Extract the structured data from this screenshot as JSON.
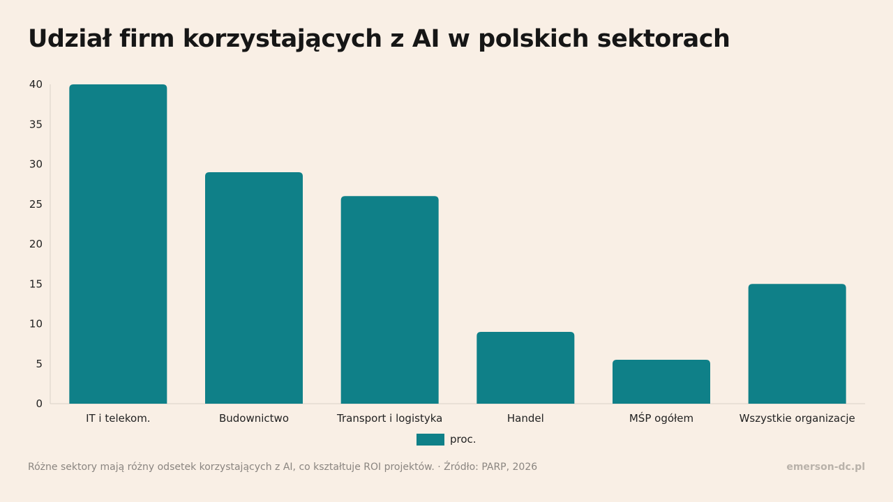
{
  "page": {
    "title": "Udział firm korzystających z AI w polskich sektorach",
    "footer_note": "Różne sektory mają różny odsetek korzystających z AI, co kształtuje ROI projektów. · Źródło: PARP, 2026",
    "footer_brand": "emerson-dc.pl"
  },
  "colors": {
    "bar": "#0f8088",
    "axis": "#d9d1c8",
    "background": "#f9efe5"
  },
  "chart_data": {
    "type": "bar",
    "title": "Udział firm korzystających z AI w polskich sektorach",
    "categories": [
      "IT i telekom.",
      "Budownictwo",
      "Transport i logistyka",
      "Handel",
      "MŚP ogółem",
      "Wszystkie organizacje"
    ],
    "series": [
      {
        "name": "proc.",
        "values": [
          40,
          29,
          26,
          9,
          5.5,
          15
        ]
      }
    ],
    "ylim": [
      0,
      40
    ],
    "yticks": [
      0,
      5,
      10,
      15,
      20,
      25,
      30,
      35,
      40
    ],
    "grid": false,
    "legend": "bottom-center"
  }
}
